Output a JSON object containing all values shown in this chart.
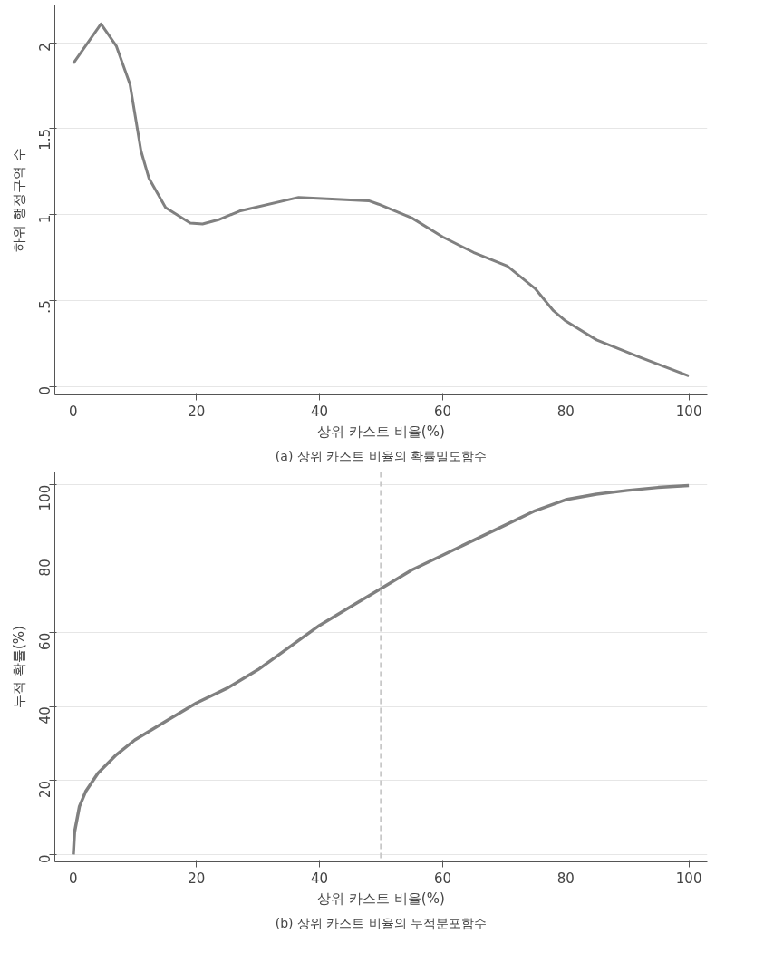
{
  "chart_data": [
    {
      "type": "line",
      "xlabel": "상위 카스트 비율(%)",
      "ylabel": "하위 행정구역 수",
      "annotations": [
        "(a) 상위 카스트 비율의 확률밀도함수"
      ],
      "series": [
        {
          "color": "#808080",
          "x": [
            0,
            4.5,
            7,
            9.2,
            11,
            12.3,
            15,
            19,
            21,
            23.6,
            27,
            36.6,
            42,
            48,
            49.6,
            55,
            60,
            65,
            70.5,
            75,
            78,
            80,
            85,
            92,
            100
          ],
          "values": [
            1.88,
            2.11,
            1.98,
            1.76,
            1.37,
            1.21,
            1.04,
            0.95,
            0.945,
            0.97,
            1.02,
            1.1,
            1.09,
            1.08,
            1.06,
            0.98,
            0.87,
            0.78,
            0.7,
            0.57,
            0.44,
            0.38,
            0.27,
            0.17,
            0.06
          ]
        }
      ],
      "xlim": [
        -3,
        103
      ],
      "ylim": [
        -0.05,
        2.22
      ],
      "xticks": [
        0,
        20,
        40,
        60,
        80,
        100
      ],
      "yticks": [
        0,
        {
          "value": 0.5,
          "label": ".5"
        },
        1,
        1.5,
        2
      ],
      "grid": "y",
      "line_style": "solid"
    },
    {
      "type": "line",
      "xlabel": "상위 카스트 비율(%)",
      "ylabel": "누적 확률(%)",
      "annotations": [
        "(b) 상위 카스트 비율의 누적분포함수"
      ],
      "series": [
        {
          "color": "#808080",
          "x": [
            0,
            0.2,
            1,
            2,
            4,
            7,
            10,
            15,
            20,
            25,
            30,
            35,
            40,
            45,
            50,
            55,
            60,
            65,
            70,
            75,
            80,
            85,
            90,
            95,
            100
          ],
          "values": [
            0,
            6,
            13,
            17,
            22,
            27,
            31,
            36,
            41,
            45,
            50,
            56,
            62,
            67,
            72,
            77,
            81,
            85,
            89,
            93,
            96,
            97.5,
            98.5,
            99.3,
            99.8
          ]
        }
      ],
      "xlim": [
        -3,
        103
      ],
      "ylim": [
        -2,
        103.5
      ],
      "xticks": [
        0,
        20,
        40,
        60,
        80,
        100
      ],
      "yticks": [
        0,
        20,
        40,
        60,
        80,
        100
      ],
      "ref_lines": [
        {
          "axis": "x",
          "value": 50,
          "color": "#c8c8c8",
          "line_style": "dashed"
        }
      ],
      "grid": "y",
      "line_style": "solid"
    }
  ]
}
